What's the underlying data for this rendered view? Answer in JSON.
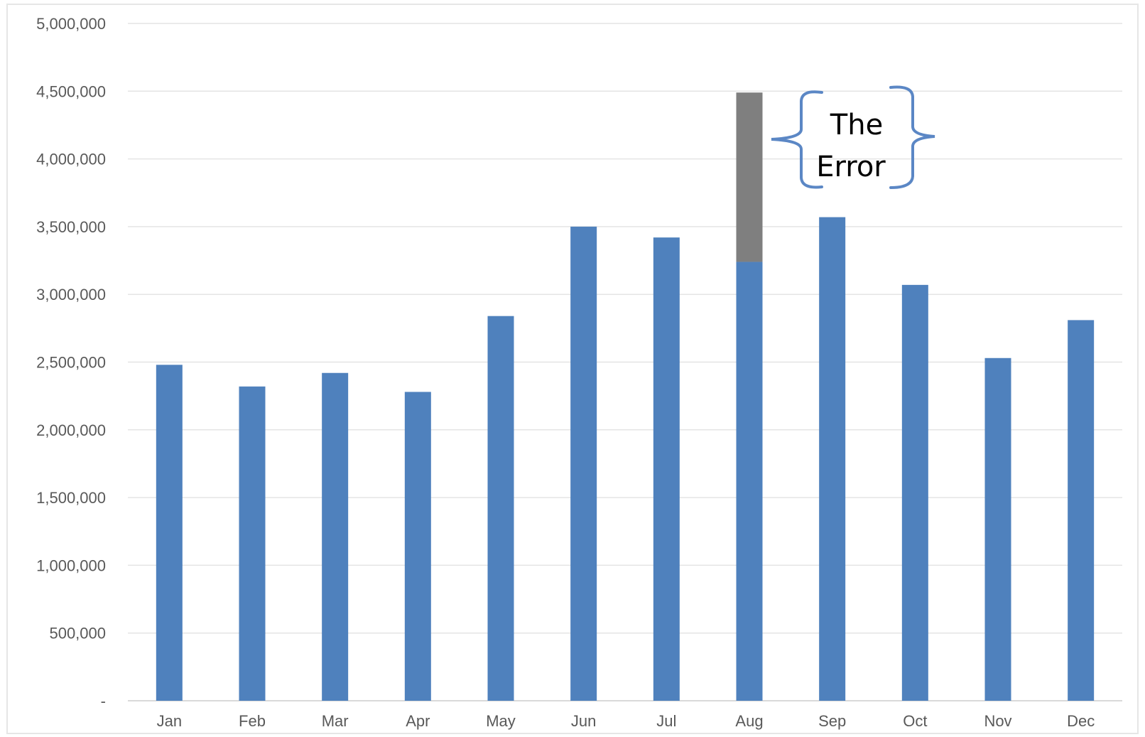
{
  "chart_data": {
    "type": "bar",
    "title": "",
    "xlabel": "",
    "ylabel": "",
    "categories": [
      "Jan",
      "Feb",
      "Mar",
      "Apr",
      "May",
      "Jun",
      "Jul",
      "Aug",
      "Sep",
      "Oct",
      "Nov",
      "Dec"
    ],
    "series": [
      {
        "color": "#4f81bd",
        "values": [
          2480000,
          2320000,
          2420000,
          2280000,
          2840000,
          3500000,
          3420000,
          3240000,
          3570000,
          3070000,
          2530000,
          2810000
        ]
      },
      {
        "color": "#7f7f7f",
        "values": [
          0,
          0,
          0,
          0,
          0,
          0,
          0,
          1250000,
          0,
          0,
          0,
          0
        ]
      }
    ],
    "stacked": true,
    "ylim": [
      0,
      5000000
    ],
    "yticks": [
      0,
      500000,
      1000000,
      1500000,
      2000000,
      2500000,
      3000000,
      3500000,
      4000000,
      4500000,
      5000000
    ],
    "ytick_labels": [
      "-",
      "500,000",
      "1,000,000",
      "1,500,000",
      "2,000,000",
      "2,500,000",
      "3,000,000",
      "3,500,000",
      "4,000,000",
      "4,500,000",
      "5,000,000"
    ],
    "grid": true,
    "legend": "none",
    "annotation": {
      "lines": [
        "The",
        "Error"
      ],
      "target_category": "Aug",
      "bracket_color": "#5b87c5"
    }
  }
}
